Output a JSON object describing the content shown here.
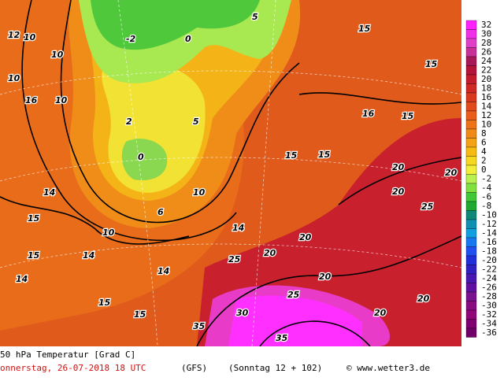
{
  "title": "50 hPa Temperatur [Grad C]",
  "run": "onnerstag, 26-07-2018  18 UTC",
  "model": "(GFS)",
  "valid": "(Sonntag 12 + 102)",
  "credit": "© www.wetter3.de",
  "colorbar": {
    "values": [
      32,
      30,
      28,
      26,
      24,
      22,
      20,
      18,
      16,
      14,
      12,
      10,
      8,
      6,
      4,
      2,
      0,
      -2,
      -4,
      -6,
      -8,
      -10,
      -12,
      -14,
      -16,
      -18,
      -20,
      -22,
      -24,
      -26,
      -28,
      -30,
      -32,
      -34,
      -36
    ],
    "colors": [
      "#ff20ff",
      "#f030e8",
      "#e040c8",
      "#c83098",
      "#a81858",
      "#b41438",
      "#c41c2c",
      "#d02824",
      "#d8381e",
      "#e04a1c",
      "#e85e1a",
      "#ee7218",
      "#f08a18",
      "#f4a218",
      "#f6bc14",
      "#f6d820",
      "#f2ee3c",
      "#b8f050",
      "#80e040",
      "#40c838",
      "#20a830",
      "#108878",
      "#1090b0",
      "#10a0e0",
      "#1878f0",
      "#2050f0",
      "#2030d8",
      "#3020c0",
      "#4818b0",
      "#6010a0",
      "#781090",
      "#880c80",
      "#900878",
      "#800070",
      "#700068"
    ]
  },
  "contour_labels": [
    12,
    10,
    10,
    10,
    16,
    14,
    15,
    10,
    14,
    15,
    14,
    15,
    15,
    14,
    10,
    14,
    25,
    20,
    20,
    25,
    30,
    35,
    35,
    20,
    20,
    25,
    20,
    20,
    20,
    20,
    15,
    15,
    16,
    15,
    15,
    15,
    0,
    2,
    5,
    6,
    10,
    5,
    0,
    -2
  ]
}
